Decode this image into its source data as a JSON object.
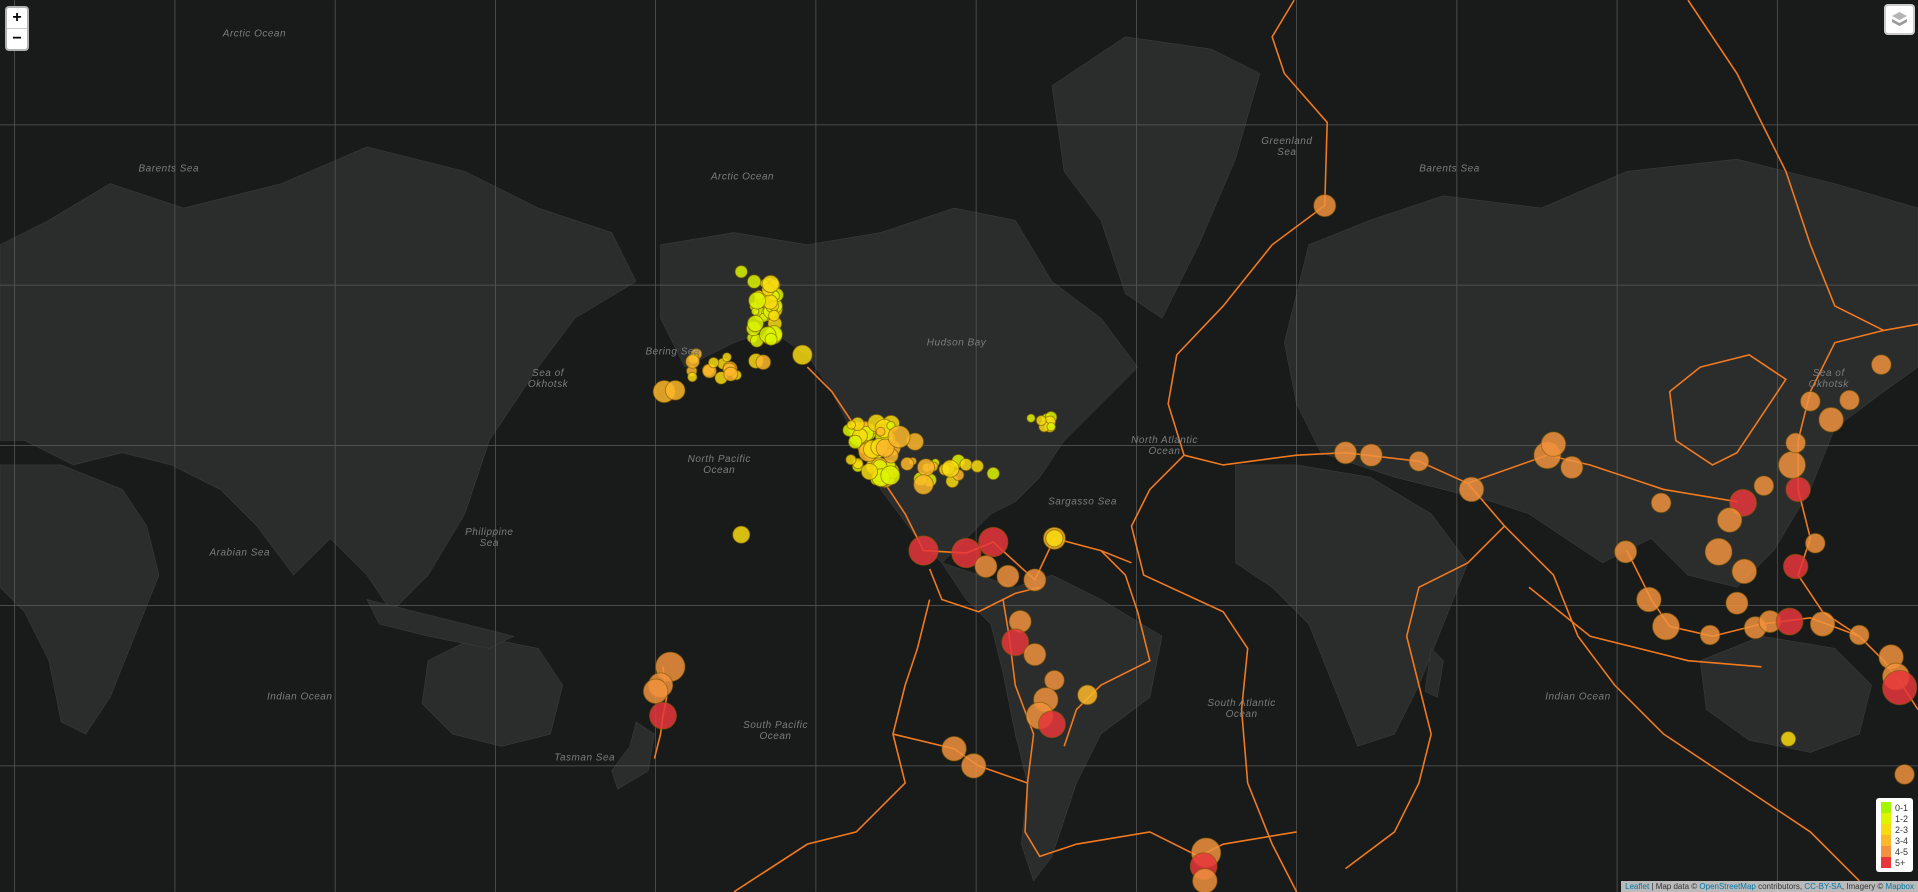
{
  "controls": {
    "zoom_in": "+",
    "zoom_out": "−"
  },
  "map_labels": [
    "Arctic Ocean",
    "Arctic Ocean",
    "Barents Sea",
    "Barents Sea",
    "Bering Sea",
    "North Pacific Ocean",
    "South Pacific Ocean",
    "Indian Ocean",
    "Indian Ocean",
    "North Atlantic Ocean",
    "South Atlantic Ocean",
    "Greenland Sea",
    "Philippine Sea",
    "Arabian Sea",
    "Tasman Sea",
    "Hudson Bay",
    "Sargasso Sea",
    "Sea of Okhotsk",
    "Sea of Okhotsk"
  ],
  "legend": [
    {
      "label": "0-1",
      "color": "#a3f600"
    },
    {
      "label": "1-2",
      "color": "#dcf400"
    },
    {
      "label": "2-3",
      "color": "#f7db11"
    },
    {
      "label": "3-4",
      "color": "#fdb72a"
    },
    {
      "label": "4-5",
      "color": "#f0923e"
    },
    {
      "label": "5+",
      "color": "#e8363b"
    }
  ],
  "plate_color": "#f07a20",
  "attribution": {
    "leaflet": "Leaflet",
    "text1": " | Map data © ",
    "osm": "OpenStreetMap",
    "text2": " contributors, ",
    "license": "CC-BY-SA",
    "text3": ", Imagery © ",
    "mapbox": "Mapbox"
  }
}
